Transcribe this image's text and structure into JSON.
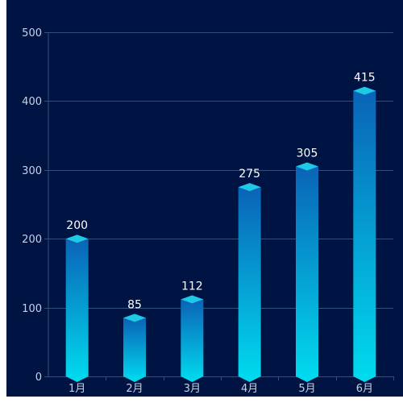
{
  "colors": {
    "background": "#001443",
    "grid": "#33507a",
    "axis_text": "#c8d2e6",
    "value_text": "#ffffff",
    "bar_top": "#0a63b7",
    "bar_bottom": "#00dcef",
    "cap": "#1ec9e6"
  },
  "chart_data": {
    "type": "bar",
    "title": "",
    "xlabel": "",
    "ylabel": "",
    "categories": [
      "1月",
      "2月",
      "3月",
      "4月",
      "5月",
      "6月"
    ],
    "values": [
      200,
      85,
      112,
      275,
      305,
      415
    ],
    "ylim": [
      0,
      500
    ],
    "yticks": [
      0,
      100,
      200,
      300,
      400,
      500
    ],
    "grid": true,
    "data_labels": true
  }
}
